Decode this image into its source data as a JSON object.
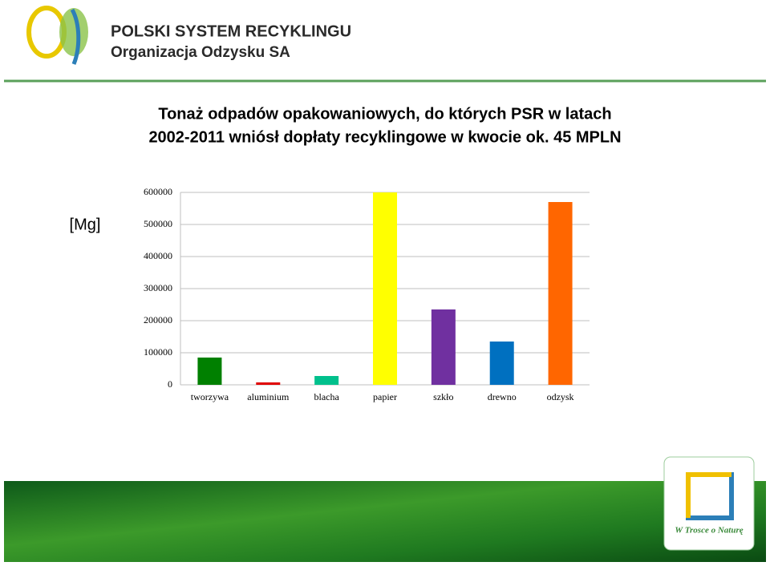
{
  "header": {
    "org": "POLSKI SYSTEM RECYKLINGU",
    "subtitle": "Organizacja Odzysku SA"
  },
  "chart_data": {
    "type": "bar",
    "title": [
      "Tonaż odpadów opakowaniowych, do których PSR w latach",
      "2002-2011 wniósł dopłaty recyklingowe w kwocie ok. 45 MPLN"
    ],
    "ylabel": "[Mg]",
    "categories": [
      "tworzywa",
      "aluminium",
      "blacha",
      "papier",
      "szkło",
      "drewno",
      "odzysk"
    ],
    "values": [
      85000,
      7500,
      27500,
      600000,
      235000,
      135000,
      570000
    ],
    "colors": [
      "#008000",
      "#e00000",
      "#00c08c",
      "#ffff00",
      "#7030a0",
      "#0070c0",
      "#ff6600"
    ],
    "ylim": [
      0,
      600000
    ],
    "yticks": [
      0,
      100000,
      200000,
      300000,
      400000,
      500000,
      600000
    ],
    "grid": true
  },
  "footer": {
    "badge": "W Trosce o Naturę"
  }
}
